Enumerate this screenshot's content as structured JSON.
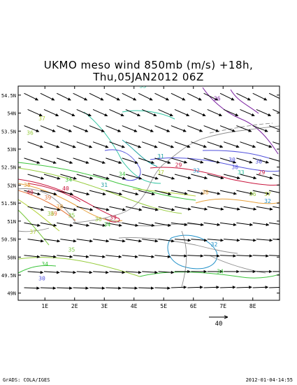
{
  "chart_data": {
    "type": "heatmap",
    "title": "UKMO meso wind 850mb (m/s)  +18h,",
    "subtitle": "Thu,05JAN2012 06Z",
    "x_ticks": [
      "1E",
      "2E",
      "3E",
      "4E",
      "5E",
      "6E",
      "7E",
      "8E"
    ],
    "y_ticks": [
      "54.5N",
      "54N",
      "53.5N",
      "53N",
      "52.5N",
      "52N",
      "51.5N",
      "51N",
      "50.5N",
      "50N",
      "49.5N",
      "49N"
    ],
    "xlim": [
      0.1,
      8.9
    ],
    "ylim": [
      48.8,
      54.75
    ],
    "contour_labels": [
      {
        "text": "33",
        "lon": 4.3,
        "lat": 54.7,
        "color": "#2ec4a0"
      },
      {
        "text": "26",
        "lon": 6.8,
        "lat": 54.35,
        "color": "#7a1fa0"
      },
      {
        "text": "37",
        "lon": 0.9,
        "lat": 53.8,
        "color": "#b4d23c"
      },
      {
        "text": "36",
        "lon": 0.5,
        "lat": 53.4,
        "color": "#96cc3c"
      },
      {
        "text": "34",
        "lon": 1.8,
        "lat": 52.1,
        "color": "#3cc43c"
      },
      {
        "text": "31",
        "lon": 4.9,
        "lat": 52.75,
        "color": "#1ea0a0"
      },
      {
        "text": "29",
        "lon": 5.5,
        "lat": 52.5,
        "color": "#c8143c"
      },
      {
        "text": "30",
        "lon": 7.3,
        "lat": 52.65,
        "color": "#5050dc"
      },
      {
        "text": "30",
        "lon": 7.4,
        "lat": 52.45,
        "color": "#5050dc"
      },
      {
        "text": "30",
        "lon": 8.2,
        "lat": 52.6,
        "color": "#5050dc"
      },
      {
        "text": "32",
        "lon": 6.1,
        "lat": 52.35,
        "color": "#2090c8"
      },
      {
        "text": "33",
        "lon": 7.6,
        "lat": 52.3,
        "color": "#2ec4a0"
      },
      {
        "text": "34",
        "lon": 3.6,
        "lat": 52.25,
        "color": "#3cc43c"
      },
      {
        "text": "29",
        "lon": 8.3,
        "lat": 52.3,
        "color": "#c8143c"
      },
      {
        "text": "37",
        "lon": 4.9,
        "lat": 52.3,
        "color": "#b4d23c"
      },
      {
        "text": "38",
        "lon": 6.4,
        "lat": 51.75,
        "color": "#e6a03c"
      },
      {
        "text": "36",
        "lon": 8.0,
        "lat": 51.7,
        "color": "#96cc3c"
      },
      {
        "text": "37",
        "lon": 8.5,
        "lat": 51.7,
        "color": "#b4d23c"
      },
      {
        "text": "32",
        "lon": 8.5,
        "lat": 51.5,
        "color": "#2090c8"
      },
      {
        "text": "38",
        "lon": 0.4,
        "lat": 51.95,
        "color": "#e6a03c"
      },
      {
        "text": "40",
        "lon": 0.5,
        "lat": 51.75,
        "color": "#c8143c"
      },
      {
        "text": "40",
        "lon": 1.7,
        "lat": 51.85,
        "color": "#c8143c"
      },
      {
        "text": "39",
        "lon": 1.1,
        "lat": 51.6,
        "color": "#e6783c"
      },
      {
        "text": "38",
        "lon": 1.5,
        "lat": 51.35,
        "color": "#e6a03c"
      },
      {
        "text": "39",
        "lon": 1.3,
        "lat": 51.15,
        "color": "#e6783c"
      },
      {
        "text": "36",
        "lon": 1.2,
        "lat": 51.15,
        "color": "#96cc3c"
      },
      {
        "text": "35",
        "lon": 1.9,
        "lat": 51.1,
        "color": "#78c83c"
      },
      {
        "text": "39",
        "lon": 3.3,
        "lat": 51.05,
        "color": "#c8143c"
      },
      {
        "text": "34",
        "lon": 3.1,
        "lat": 50.85,
        "color": "#3cc43c"
      },
      {
        "text": "37",
        "lon": 0.6,
        "lat": 50.65,
        "color": "#b4d23c"
      },
      {
        "text": "35",
        "lon": 1.9,
        "lat": 50.15,
        "color": "#78c83c"
      },
      {
        "text": "34",
        "lon": 1.0,
        "lat": 49.75,
        "color": "#3cc43c"
      },
      {
        "text": "32",
        "lon": 6.7,
        "lat": 50.3,
        "color": "#2090c8"
      },
      {
        "text": "34",
        "lon": 6.9,
        "lat": 49.55,
        "color": "#3cc43c"
      },
      {
        "text": "30",
        "lon": 0.9,
        "lat": 49.35,
        "color": "#5050dc"
      },
      {
        "text": "36",
        "lon": 2.8,
        "lat": 51.0,
        "color": "#96cc3c"
      },
      {
        "text": "31",
        "lon": 3.0,
        "lat": 51.95,
        "color": "#1ea0a0"
      }
    ],
    "vector_scale": {
      "label": "40",
      "units": "m/s"
    },
    "wind_vectors": {
      "description": "850mb wind arrows on regular lon/lat grid",
      "lon_start": 0.3,
      "lon_step": 0.55,
      "lon_count": 16,
      "lat_start": 54.55,
      "lat_step": -0.45,
      "lat_count": 13
    }
  },
  "footer": {
    "left": "GrADS: COLA/IGES",
    "right": "2012-01-04-14:55"
  }
}
